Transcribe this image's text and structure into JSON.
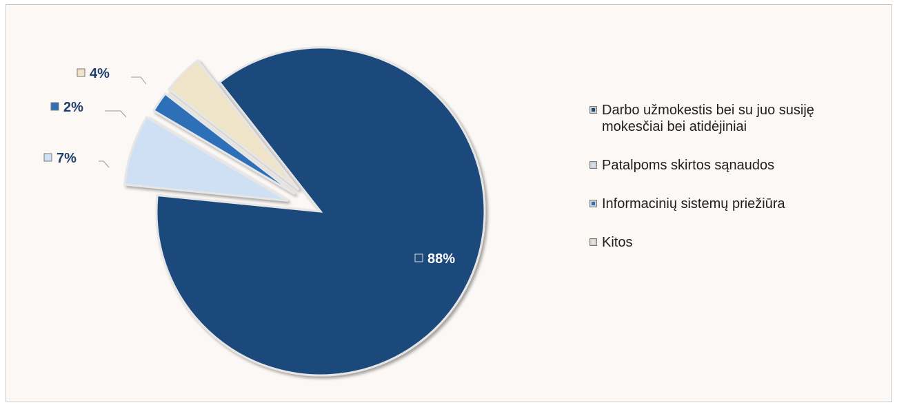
{
  "chart_data": {
    "type": "pie",
    "title": "",
    "slices": [
      {
        "label": "Darbo užmokestis bei su juo susiję mokesčiai bei atidėjiniai",
        "value": 88,
        "value_label": "88%",
        "color": "#1f4a7c"
      },
      {
        "label": "Patalpoms skirtos sąnaudos",
        "value": 7,
        "value_label": "7%",
        "color": "#cfe0f5"
      },
      {
        "label": "Informacinių sistemų priežiūra",
        "value": 2,
        "value_label": "2%",
        "color": "#2e6fb8"
      },
      {
        "label": "Kitos",
        "value": 4,
        "value_label": "4%",
        "color": "#efe3c8"
      }
    ],
    "legend_position": "right",
    "exploded": true
  },
  "legend": {
    "items": [
      {
        "line1": "Darbo užmokestis bei su juo susiję",
        "line2": "mokesčiai bei atidėjiniai"
      },
      {
        "line1": "Patalpoms skirtos sąnaudos",
        "line2": ""
      },
      {
        "line1": "Informacinių sistemų priežiūra",
        "line2": ""
      },
      {
        "line1": "Kitos",
        "line2": ""
      }
    ]
  },
  "label_color_dark": "#1f3f6b",
  "label_color_light": "#ffffff"
}
